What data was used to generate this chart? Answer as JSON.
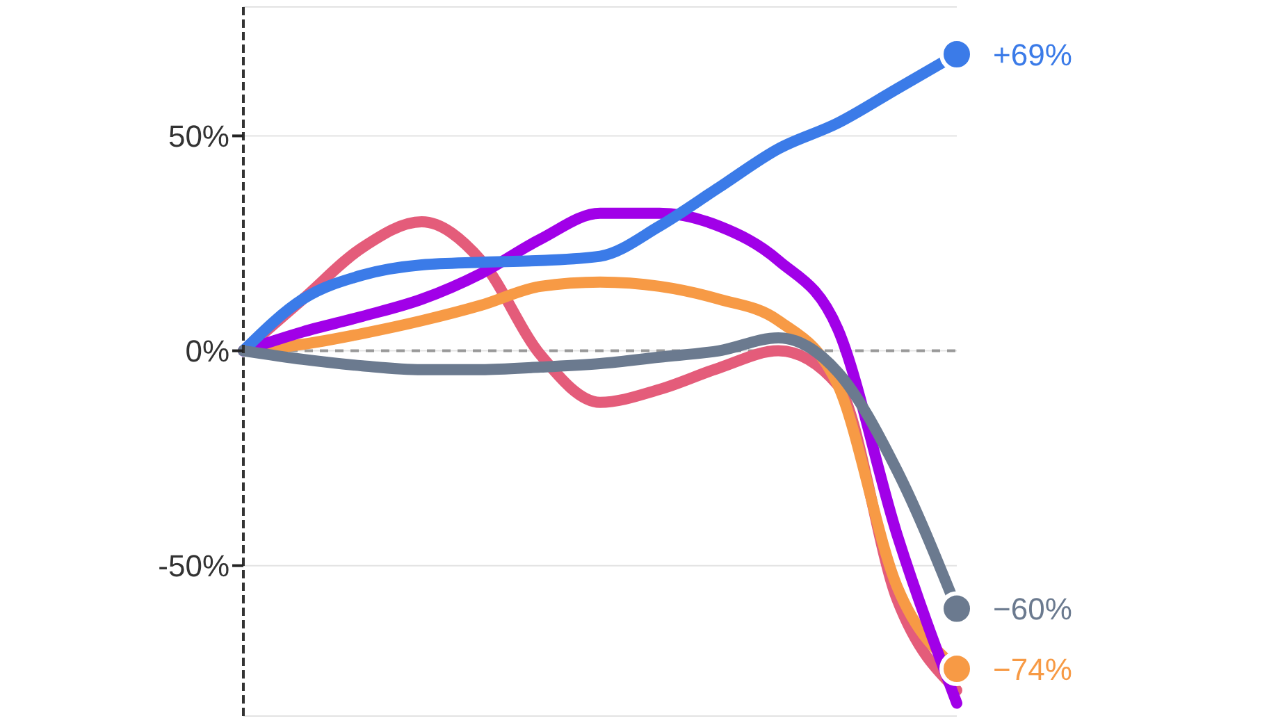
{
  "chart_data": {
    "type": "line",
    "categories": [
      null,
      null,
      null,
      null,
      null,
      null,
      null,
      null,
      null,
      null,
      null,
      null,
      null
    ],
    "ylim": [
      -85,
      80
    ],
    "yticks": [
      {
        "value": -50,
        "label": "-50%"
      },
      {
        "value": 0,
        "label": "0%"
      },
      {
        "value": 50,
        "label": "50%"
      }
    ],
    "tick_labels": "y",
    "grid": "y",
    "line_style": "solid",
    "ref_lines": [
      {
        "axis": "y",
        "value": 0,
        "color": "#999999",
        "line_style": "dashed"
      }
    ],
    "series": [
      {
        "color": "#e45c7a",
        "values": [
          0,
          12,
          24,
          30,
          21,
          -1,
          -12,
          -9,
          -4,
          0,
          -8,
          -58,
          -79
        ]
      },
      {
        "color": "#f79a45",
        "values": [
          0,
          1.5,
          4,
          7,
          10.6,
          15,
          16,
          15,
          12,
          7,
          -8,
          -55,
          -74
        ],
        "value_labels": [
          null,
          null,
          null,
          null,
          null,
          null,
          null,
          null,
          null,
          null,
          null,
          null,
          "−74%"
        ]
      },
      {
        "color": "#a100e8",
        "values": [
          0,
          4.4,
          8,
          12,
          18,
          26,
          32,
          32,
          29,
          21,
          5,
          -43,
          -82
        ]
      },
      {
        "color": "#3b7be8",
        "values": [
          0,
          12,
          17.6,
          20,
          20.6,
          21,
          22,
          29,
          38,
          47,
          53,
          61,
          69
        ],
        "value_labels": [
          null,
          null,
          null,
          null,
          null,
          null,
          null,
          null,
          null,
          null,
          null,
          null,
          "+69%"
        ]
      },
      {
        "color": "#6b7a8f",
        "values": [
          0,
          -2,
          -3.5,
          -4.4,
          -4.4,
          -3.8,
          -3,
          -1.5,
          0,
          3,
          -5,
          -28,
          -60
        ],
        "value_labels": [
          null,
          null,
          null,
          null,
          null,
          null,
          null,
          null,
          null,
          null,
          null,
          null,
          "−60%"
        ]
      }
    ]
  }
}
